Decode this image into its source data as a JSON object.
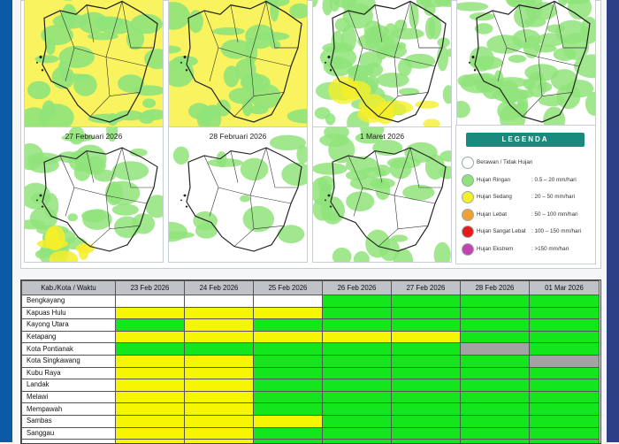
{
  "colors": {
    "ringan": "#8fe37a",
    "sedang": "#f5ef2a",
    "lebat": "#f0a030",
    "sangat_lebat": "#e41b1b",
    "ekstrem": "#c443b3",
    "berawan": "#ffffff"
  },
  "maps": [
    {
      "title": ""
    },
    {
      "title": ""
    },
    {
      "title": ""
    },
    {
      "title": ""
    },
    {
      "title": "27 Februari 2026"
    },
    {
      "title": "28 Februari 2026"
    },
    {
      "title": "1 Maret 2026"
    }
  ],
  "legend": {
    "title": "LEGENDA",
    "items": [
      {
        "label": "Berawan / Tidak Hujan",
        "range": ""
      },
      {
        "label": "Hujan Ringan",
        "range": ": 0.5 – 20 mm/hari"
      },
      {
        "label": "Hujan Sedang",
        "range": ": 20 – 50 mm/hari"
      },
      {
        "label": "Hujan Lebat",
        "range": ": 50 – 100 mm/hari"
      },
      {
        "label": "Hujan Sangat Lebat",
        "range": ": 100 – 150 mm/hari"
      },
      {
        "label": "Hujan Ekstrem",
        "range": ": >150 mm/hari"
      }
    ]
  },
  "table": {
    "headers": [
      "Kab./Kota / Waktu",
      "23 Feb 2026",
      "24 Feb 2026",
      "25 Feb 2026",
      "26 Feb 2026",
      "27 Feb 2026",
      "28 Feb 2026",
      "01 Mar 2026"
    ],
    "rows": [
      {
        "name": "Bengkayang",
        "cells": [
          "w",
          "w",
          "w",
          "g",
          "g",
          "g",
          "g"
        ]
      },
      {
        "name": "Kapuas Hulu",
        "cells": [
          "y",
          "y",
          "y",
          "g",
          "g",
          "g",
          "g"
        ]
      },
      {
        "name": "Kayong Utara",
        "cells": [
          "g",
          "y",
          "g",
          "g",
          "g",
          "g",
          "g"
        ]
      },
      {
        "name": "Ketapang",
        "cells": [
          "y",
          "y",
          "y",
          "y",
          "y",
          "g",
          "g"
        ]
      },
      {
        "name": "Kota Pontianak",
        "cells": [
          "g",
          "g",
          "g",
          "g",
          "g",
          "x",
          "g"
        ]
      },
      {
        "name": "Kota Singkawang",
        "cells": [
          "y",
          "y",
          "g",
          "g",
          "g",
          "g",
          "x"
        ]
      },
      {
        "name": "Kubu Raya",
        "cells": [
          "y",
          "y",
          "g",
          "g",
          "g",
          "g",
          "g"
        ]
      },
      {
        "name": "Landak",
        "cells": [
          "y",
          "y",
          "g",
          "g",
          "g",
          "g",
          "g"
        ]
      },
      {
        "name": "Melawi",
        "cells": [
          "y",
          "y",
          "g",
          "g",
          "g",
          "g",
          "g"
        ]
      },
      {
        "name": "Mempawah",
        "cells": [
          "y",
          "y",
          "g",
          "g",
          "g",
          "g",
          "g"
        ]
      },
      {
        "name": "Sambas",
        "cells": [
          "y",
          "y",
          "y",
          "g",
          "g",
          "g",
          "g"
        ]
      },
      {
        "name": "Sanggau",
        "cells": [
          "y",
          "y",
          "g",
          "g",
          "g",
          "g",
          "g"
        ]
      },
      {
        "name": "",
        "cells": [
          "y",
          "y",
          "g",
          "g",
          "g",
          "g",
          "g"
        ]
      }
    ]
  }
}
